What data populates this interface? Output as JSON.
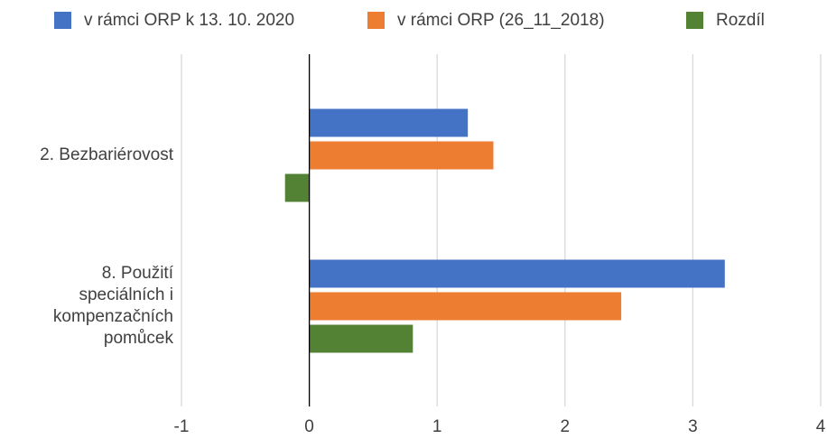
{
  "chart_data": {
    "type": "hbar",
    "categories": [
      "2. Bezbariérovost",
      "8. Použití speciálních i kompenzačních pomůcek"
    ],
    "series": [
      {
        "name": "v rámci ORP k 13. 10. 2020",
        "color": "#4472c4",
        "values": [
          1.24,
          3.25
        ]
      },
      {
        "name": "v rámci ORP (26_11_2018)",
        "color": "#ed7d31",
        "values": [
          1.44,
          2.44
        ]
      },
      {
        "name": "Rozdíl",
        "color": "#548235",
        "values": [
          -0.19,
          0.81
        ]
      }
    ],
    "xlim": [
      -1,
      4
    ],
    "xticks": [
      -1,
      0,
      1,
      2,
      3,
      4
    ],
    "grid": true,
    "legend": "top"
  }
}
